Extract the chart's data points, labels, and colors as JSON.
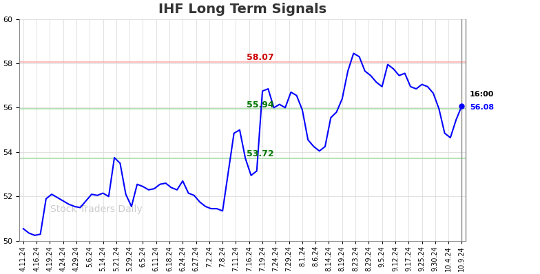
{
  "title": "IHF Long Term Signals",
  "title_fontsize": 14,
  "title_fontweight": "bold",
  "title_color": "#333333",
  "ylim": [
    50,
    60
  ],
  "yticks": [
    50,
    52,
    54,
    56,
    58,
    60
  ],
  "red_line": 58.07,
  "green_line_upper": 55.94,
  "green_line_lower": 53.72,
  "red_line_color": "#ffaaaa",
  "green_line_color": "#aaddaa",
  "line_color": "blue",
  "last_label_time": "16:00",
  "last_label_value": "56.08",
  "annotation_color_time": "black",
  "annotation_color_value": "blue",
  "watermark": "Stock Traders Daily",
  "watermark_color": "#cccccc",
  "background_color": "#ffffff",
  "grid_color": "#dddddd",
  "xlabels": [
    "4.11.24",
    "4.16.24",
    "4.19.24",
    "4.24.24",
    "4.29.24",
    "5.6.24",
    "5.14.24",
    "5.21.24",
    "5.29.24",
    "6.5.24",
    "6.11.24",
    "6.18.24",
    "6.24.24",
    "6.27.24",
    "7.2.24",
    "7.8.24",
    "7.11.24",
    "7.16.24",
    "7.19.24",
    "7.24.24",
    "7.29.24",
    "8.1.24",
    "8.6.24",
    "8.14.24",
    "8.19.24",
    "8.23.24",
    "8.29.24",
    "9.5.24",
    "9.12.24",
    "9.17.24",
    "9.25.24",
    "9.30.24",
    "10.4.24",
    "10.9.24"
  ],
  "red_annotation_color": "#cc0000",
  "green_annotation_color": "#007700",
  "prices": [
    50.55,
    50.35,
    50.25,
    50.3,
    51.9,
    52.1,
    51.95,
    51.8,
    51.65,
    51.55,
    51.5,
    51.8,
    52.1,
    52.05,
    52.15,
    52.0,
    53.75,
    53.5,
    52.1,
    51.55,
    52.55,
    52.45,
    52.3,
    52.35,
    52.55,
    52.6,
    52.4,
    52.3,
    52.7,
    52.15,
    52.05,
    51.75,
    51.55,
    51.45,
    51.45,
    51.35,
    53.1,
    54.85,
    55.0,
    53.72,
    52.95,
    53.15,
    56.75,
    56.85,
    56.0,
    56.15,
    56.0,
    56.7,
    56.55,
    55.9,
    54.55,
    54.25,
    54.05,
    54.25,
    55.55,
    55.8,
    56.4,
    57.65,
    58.45,
    58.3,
    57.65,
    57.45,
    57.15,
    56.95,
    57.95,
    57.75,
    57.45,
    57.55,
    56.95,
    56.85,
    57.05,
    56.95,
    56.65,
    55.95,
    54.85,
    54.65,
    55.45,
    56.08
  ]
}
